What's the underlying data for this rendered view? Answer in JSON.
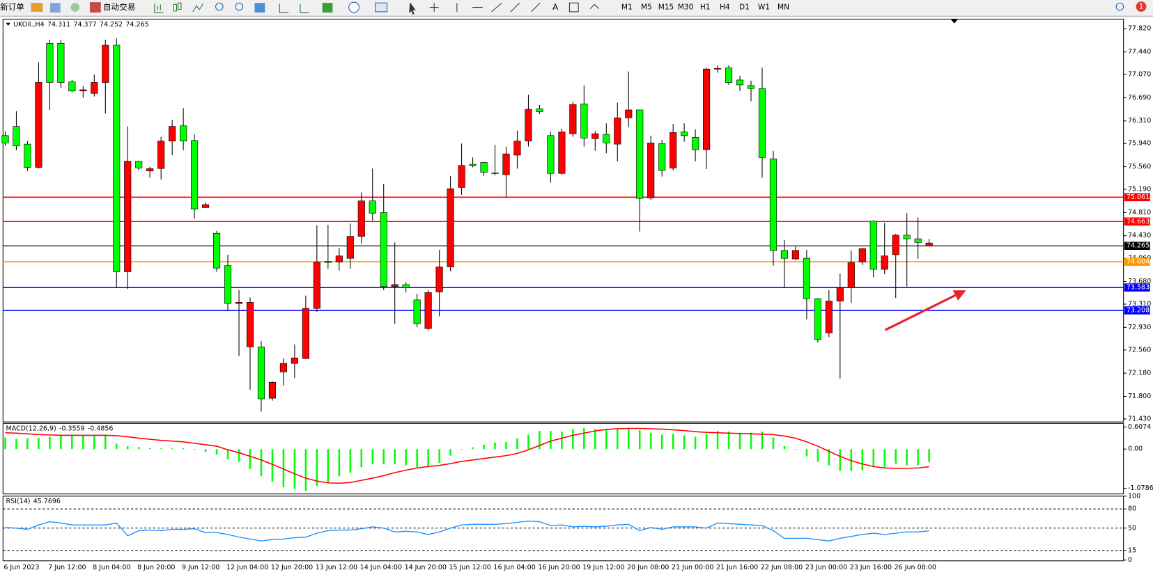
{
  "toolbar": {
    "new_order": "新订单",
    "auto_trading": "自动交易",
    "text_tool": "A",
    "timeframes": [
      "M1",
      "M5",
      "M15",
      "M30",
      "H1",
      "H4",
      "D1",
      "W1",
      "MN"
    ],
    "alerts": 1
  },
  "chart_data": [
    {
      "type": "candlestick",
      "title": "UKOil.,H4",
      "up_color": "#00ff00",
      "down_color": "#ff0000",
      "categories": [
        "6 Jun 2023",
        null,
        null,
        null,
        "7 Jun 12:00",
        null,
        null,
        null,
        "8 Jun 04:00",
        null,
        null,
        null,
        "8 Jun 20:00",
        null,
        null,
        null,
        "9 Jun 12:00",
        null,
        null,
        null,
        "12 Jun 04:00",
        null,
        null,
        null,
        "12 Jun 20:00",
        null,
        null,
        null,
        "13 Jun 12:00",
        null,
        null,
        null,
        "14 Jun 04:00",
        null,
        null,
        null,
        "14 Jun 20:00",
        null,
        null,
        null,
        "15 Jun 12:00",
        null,
        null,
        null,
        "16 Jun 04:00",
        null,
        null,
        null,
        "16 Jun 20:00",
        null,
        null,
        null,
        "19 Jun 12:00",
        null,
        null,
        null,
        "20 Jun 08:00",
        null,
        null,
        null,
        "21 Jun 00:00",
        null,
        null,
        null,
        "21 Jun 16:00",
        null,
        null,
        null,
        "22 Jun 08:00",
        null,
        null,
        null,
        "23 Jun 00:00",
        null,
        null,
        null,
        "23 Jun 16:00",
        null,
        null,
        null,
        "26 Jun 08:00",
        null,
        null,
        null
      ],
      "open": [
        75.95,
        75.9,
        75.55,
        76.94,
        76.94,
        76.94,
        76.8,
        76.82,
        76.94,
        77.55,
        73.84,
        75.65,
        75.54,
        75.53,
        75.98,
        76.22,
        75.98,
        74.87,
        74.94,
        73.9,
        73.32,
        73.34,
        73.34,
        71.76,
        72.03,
        72.34,
        72.43,
        73.24,
        74.0,
        73.99,
        74.1,
        74.42,
        75.0,
        74.8,
        73.6,
        73.63,
        73.58,
        72.99,
        73.5,
        73.92,
        75.2,
        75.58,
        75.58,
        75.47,
        75.45,
        75.77,
        75.98,
        76.5,
        76.46,
        75.45,
        76.13,
        76.58,
        76.03,
        76.1,
        75.95,
        76.36,
        76.49,
        75.04,
        75.95,
        75.5,
        76.12,
        76.07,
        75.84,
        77.16,
        77.17,
        76.94,
        76.9,
        76.84,
        75.71,
        74.19,
        74.06,
        74.19,
        73.4,
        72.73,
        73.36,
        73.58,
        73.99,
        74.22,
        73.88,
        74.1,
        74.44,
        74.38,
        74.32,
        74.311
      ],
      "high": [
        76.14,
        76.47,
        75.98,
        77.27,
        77.64,
        77.64,
        76.98,
        76.88,
        77.07,
        77.64,
        77.66,
        76.22,
        75.66,
        75.56,
        76.05,
        76.33,
        76.52,
        76.09,
        74.97,
        74.51,
        74.12,
        73.54,
        73.42,
        72.7,
        72.05,
        72.42,
        72.65,
        73.45,
        74.6,
        74.61,
        74.23,
        74.63,
        75.14,
        75.53,
        75.28,
        74.32,
        73.67,
        73.48,
        73.54,
        74.2,
        75.41,
        75.94,
        75.71,
        75.64,
        75.92,
        75.89,
        76.15,
        76.74,
        76.57,
        76.13,
        76.18,
        76.62,
        76.89,
        76.14,
        76.27,
        76.61,
        77.12,
        76.49,
        76.07,
        76.0,
        76.26,
        76.27,
        76.17,
        77.18,
        77.22,
        77.22,
        77.05,
        76.97,
        77.18,
        75.82,
        74.36,
        74.25,
        74.2,
        73.41,
        73.54,
        73.81,
        74.19,
        74.23,
        74.68,
        74.64,
        74.46,
        74.8,
        74.73,
        74.377
      ],
      "low": [
        75.9,
        75.83,
        75.49,
        75.53,
        76.49,
        76.85,
        76.78,
        76.69,
        76.71,
        76.43,
        73.57,
        73.56,
        75.5,
        75.38,
        75.35,
        75.75,
        75.83,
        74.71,
        74.88,
        73.84,
        73.2,
        72.46,
        71.91,
        71.55,
        71.73,
        71.98,
        72.1,
        72.41,
        73.18,
        73.89,
        73.86,
        73.89,
        74.3,
        74.68,
        73.54,
        72.99,
        73.5,
        72.93,
        72.88,
        73.11,
        73.85,
        75.1,
        75.55,
        75.41,
        75.42,
        75.06,
        75.53,
        75.89,
        76.42,
        75.3,
        75.43,
        76.05,
        75.89,
        75.82,
        75.78,
        75.65,
        76.21,
        74.5,
        75.02,
        75.4,
        75.5,
        75.97,
        75.65,
        75.52,
        77.1,
        76.9,
        76.8,
        76.63,
        75.38,
        73.94,
        73.58,
        74.03,
        73.06,
        72.68,
        72.77,
        72.09,
        73.33,
        73.95,
        73.75,
        73.8,
        73.41,
        73.6,
        74.05,
        74.252
      ],
      "close": [
        76.07,
        76.22,
        75.93,
        75.55,
        77.58,
        77.58,
        76.95,
        76.8,
        76.76,
        76.94,
        77.55,
        73.84,
        75.65,
        75.49,
        75.53,
        75.98,
        76.23,
        75.99,
        74.89,
        74.47,
        73.94,
        73.32,
        72.61,
        72.61,
        71.77,
        72.2,
        72.34,
        72.42,
        73.24,
        74.01,
        74.0,
        74.06,
        74.42,
        75.0,
        74.81,
        73.6,
        73.63,
        73.38,
        72.91,
        73.51,
        73.92,
        75.22,
        75.6,
        75.63,
        75.46,
        75.43,
        75.75,
        75.98,
        76.51,
        76.07,
        75.45,
        76.1,
        76.59,
        76.02,
        76.09,
        75.93,
        76.36,
        76.49,
        75.05,
        75.94,
        75.54,
        76.13,
        76.04,
        75.84,
        77.16,
        77.18,
        76.98,
        76.89,
        76.84,
        75.69,
        74.19,
        74.05,
        74.06,
        73.4,
        72.84,
        73.36,
        73.58,
        74.0,
        74.67,
        73.88,
        74.12,
        74.44,
        74.38,
        74.265
      ],
      "levels": [
        {
          "value": 75.061,
          "color": "#ff0000"
        },
        {
          "value": 74.663,
          "color": "#ff0000"
        },
        {
          "value": 74.004,
          "color": "#ff9900"
        },
        {
          "value": 73.583,
          "color": "#0000ff"
        },
        {
          "value": 73.208,
          "color": "#0000ff"
        }
      ],
      "ylim": [
        71.394,
        77.965
      ],
      "yticks": [
        {
          "value": 77.82,
          "label": "77.820"
        },
        {
          "value": 77.44,
          "label": "77.440"
        },
        {
          "value": 77.07,
          "label": "77.070"
        },
        {
          "value": 76.69,
          "label": "76.690"
        },
        {
          "value": 76.31,
          "label": "76.310"
        },
        {
          "value": 75.94,
          "label": "75.940"
        },
        {
          "value": 75.56,
          "label": "75.560"
        },
        {
          "value": 75.19,
          "label": "75.190"
        },
        {
          "value": 74.81,
          "label": "74.810"
        },
        {
          "value": 74.43,
          "label": "74.430"
        },
        {
          "value": 74.06,
          "label": "74.060"
        },
        {
          "value": 73.68,
          "label": "73.680"
        },
        {
          "value": 73.31,
          "label": "73.310"
        },
        {
          "value": 72.93,
          "label": "72.930"
        },
        {
          "value": 72.56,
          "label": "72.560"
        },
        {
          "value": 72.18,
          "label": "72.180"
        },
        {
          "value": 71.8,
          "label": "71.800"
        },
        {
          "value": 71.43,
          "label": "71.430"
        }
      ]
    },
    {
      "type": "macd",
      "title": "MACD(12,26,9)",
      "ylim": [
        -1.215,
        0.688
      ],
      "yticks": [
        0.6074,
        {
          "value": 0,
          "label": "0.00"
        },
        -1.0786
      ],
      "series": [
        {
          "color": "#00ff00",
          "values": [
            0.32,
            0.28,
            0.3,
            0.3,
            0.34,
            0.38,
            0.38,
            0.36,
            0.36,
            0.4,
            0.15,
            0.08,
            0.06,
            0.03,
            0.02,
            0.02,
            0.03,
            -0.02,
            -0.08,
            -0.15,
            -0.28,
            -0.35,
            -0.55,
            -0.75,
            -0.9,
            -1.05,
            -1.1,
            -1.15,
            -1.02,
            -0.92,
            -0.75,
            -0.65,
            -0.5,
            -0.42,
            -0.42,
            -0.42,
            -0.45,
            -0.5,
            -0.5,
            -0.38,
            -0.18,
            -0.02,
            0.05,
            0.12,
            0.18,
            0.2,
            0.3,
            0.4,
            0.5,
            0.5,
            0.48,
            0.55,
            0.58,
            0.55,
            0.55,
            0.55,
            0.58,
            0.52,
            0.45,
            0.4,
            0.42,
            0.38,
            0.34,
            0.42,
            0.5,
            0.48,
            0.45,
            0.45,
            0.48,
            0.32,
            0.08,
            -0.02,
            -0.2,
            -0.35,
            -0.45,
            -0.6,
            -0.6,
            -0.58,
            -0.5,
            -0.5,
            -0.4,
            -0.45,
            -0.45,
            -0.3559
          ]
        },
        {
          "color": "#ff0000",
          "values": [
            0.45,
            0.44,
            0.42,
            0.4,
            0.39,
            0.38,
            0.38,
            0.38,
            0.38,
            0.38,
            0.37,
            0.34,
            0.3,
            0.27,
            0.24,
            0.22,
            0.2,
            0.16,
            0.12,
            0.08,
            -0.02,
            -0.1,
            -0.2,
            -0.3,
            -0.42,
            -0.55,
            -0.68,
            -0.8,
            -0.88,
            -0.93,
            -0.94,
            -0.92,
            -0.86,
            -0.8,
            -0.73,
            -0.65,
            -0.58,
            -0.52,
            -0.48,
            -0.45,
            -0.4,
            -0.34,
            -0.3,
            -0.26,
            -0.22,
            -0.18,
            -0.12,
            -0.02,
            0.1,
            0.22,
            0.3,
            0.38,
            0.44,
            0.5,
            0.54,
            0.56,
            0.57,
            0.57,
            0.56,
            0.55,
            0.53,
            0.51,
            0.48,
            0.46,
            0.45,
            0.44,
            0.43,
            0.42,
            0.41,
            0.4,
            0.36,
            0.3,
            0.2,
            0.08,
            -0.06,
            -0.2,
            -0.32,
            -0.41,
            -0.48,
            -0.52,
            -0.53,
            -0.53,
            -0.52,
            -0.4856
          ]
        }
      ]
    },
    {
      "type": "rsi",
      "title": "RSI(14)",
      "ylim": [
        0,
        100
      ],
      "yticks": [
        100,
        80,
        50,
        15,
        0
      ],
      "color": "#1e90ff",
      "values": [
        51,
        50,
        48,
        55,
        60,
        58,
        55,
        55,
        55,
        55,
        58,
        38,
        46,
        47,
        46,
        48,
        48,
        49,
        43,
        43,
        40,
        36,
        33,
        30,
        32,
        33,
        35,
        36,
        42,
        46,
        47,
        47,
        49,
        52,
        50,
        44,
        45,
        44,
        40,
        44,
        50,
        55,
        56,
        56,
        56,
        57,
        59,
        61,
        60,
        54,
        55,
        52,
        53,
        52,
        53,
        55,
        56,
        46,
        51,
        48,
        52,
        52,
        52,
        50,
        58,
        57,
        56,
        55,
        54,
        46,
        34,
        34,
        34,
        32,
        30,
        34,
        37,
        40,
        42,
        40,
        42,
        44,
        44,
        45.7696
      ]
    }
  ]
}
